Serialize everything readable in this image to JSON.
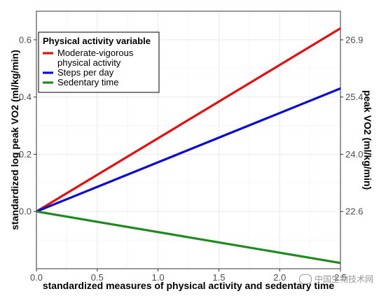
{
  "chart_data": {
    "type": "line",
    "xlabel": "standardized measures of physical activity and sedentary time",
    "ylabel": "standardized log peak VO2 (ml/kg/min)",
    "y2label": "peak VO2 (ml/kg/min)",
    "xlim": [
      0,
      2.5
    ],
    "ylim": [
      -0.2,
      0.7
    ],
    "x_ticks": [
      "0.0",
      "0.5",
      "1.0",
      "1.5",
      "2.0",
      "2.5"
    ],
    "y_ticks": [
      "0.0",
      "0.2",
      "0.4",
      "0.6"
    ],
    "y_tick_values": [
      0.0,
      0.2,
      0.4,
      0.6
    ],
    "y2_ticks": [
      "22.6",
      "24.0",
      "25.4",
      "26.9"
    ],
    "y2_tick_values": [
      0.0,
      0.2,
      0.4,
      0.6
    ],
    "grid": true,
    "legend_title": "Physical activity variable",
    "legend_position": "top-left",
    "series": [
      {
        "name": "Moderate-vigorous physical activity",
        "name_lines": [
          "Moderate-vigorous",
          "physical activity"
        ],
        "color": "#e01010",
        "x": [
          0,
          2.5
        ],
        "y": [
          0,
          0.64
        ]
      },
      {
        "name": "Steps per day",
        "name_lines": [
          "Steps per day"
        ],
        "color": "#0a0ad0",
        "x": [
          0,
          2.5
        ],
        "y": [
          0,
          0.43
        ]
      },
      {
        "name": "Sedentary time",
        "name_lines": [
          "Sedentary time"
        ],
        "color": "#1e8a1e",
        "x": [
          0,
          2.5
        ],
        "y": [
          0,
          -0.18
        ]
      }
    ]
  },
  "watermark": {
    "text": "中国生物技术网"
  }
}
